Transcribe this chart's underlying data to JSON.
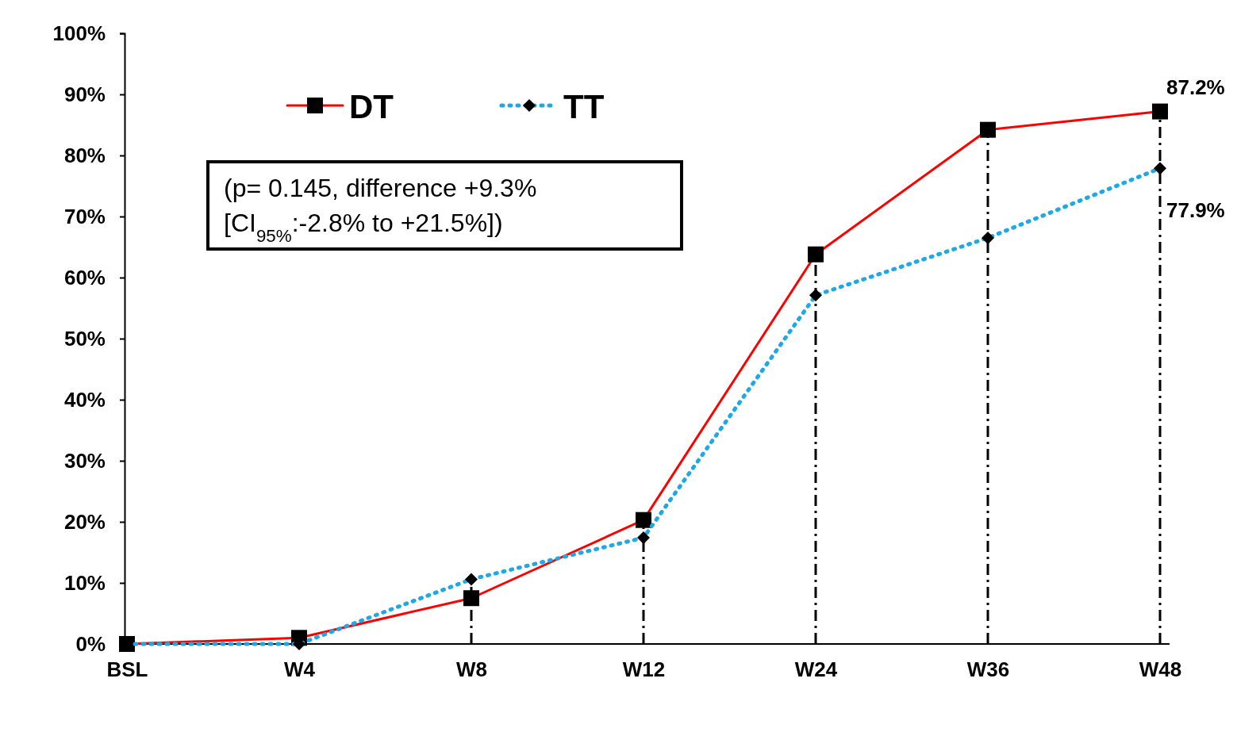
{
  "chart_data": {
    "type": "line",
    "categories": [
      "BSL",
      "W4",
      "W8",
      "W12",
      "W24",
      "W36",
      "W48"
    ],
    "series": [
      {
        "name": "DT",
        "color": "#ff0000",
        "marker": "square",
        "line_style": "solid",
        "values": [
          0,
          1.0,
          7.5,
          20.3,
          63.8,
          84.2,
          87.2
        ],
        "value_labels": [
          null,
          null,
          null,
          null,
          null,
          null,
          "87.2%"
        ]
      },
      {
        "name": "TT",
        "color": "#1ea8e6",
        "marker": "diamond",
        "line_style": "dotted",
        "values": [
          0,
          0,
          10.6,
          17.4,
          57.1,
          66.5,
          77.9
        ],
        "value_labels": [
          null,
          null,
          null,
          null,
          null,
          null,
          "77.9%"
        ]
      }
    ],
    "ylim": [
      0,
      100
    ],
    "yticks": [
      {
        "value": 0,
        "label": "0%"
      },
      {
        "value": 10,
        "label": "10%"
      },
      {
        "value": 20,
        "label": "20%"
      },
      {
        "value": 30,
        "label": "30%"
      },
      {
        "value": 40,
        "label": "40%"
      },
      {
        "value": 50,
        "label": "50%"
      },
      {
        "value": 60,
        "label": "60%"
      },
      {
        "value": 70,
        "label": "70%"
      },
      {
        "value": 80,
        "label": "80%"
      },
      {
        "value": 90,
        "label": "90%"
      },
      {
        "value": 100,
        "label": "100%"
      }
    ],
    "ref_lines": [
      {
        "axis": "x",
        "value": "W8",
        "line_style": "dashed",
        "color": "#000000"
      },
      {
        "axis": "x",
        "value": "W12",
        "line_style": "dashed",
        "color": "#000000"
      },
      {
        "axis": "x",
        "value": "W24",
        "line_style": "dashed",
        "color": "#000000"
      },
      {
        "axis": "x",
        "value": "W36",
        "line_style": "dashed",
        "color": "#000000"
      },
      {
        "axis": "x",
        "value": "W48",
        "line_style": "dashed",
        "color": "#000000"
      }
    ],
    "annotations": [
      "(p= 0.145, difference +9.3%\n[CI$_{95%}$:-2.8% to +21.5%])"
    ],
    "legend": "top left",
    "grid": false
  }
}
